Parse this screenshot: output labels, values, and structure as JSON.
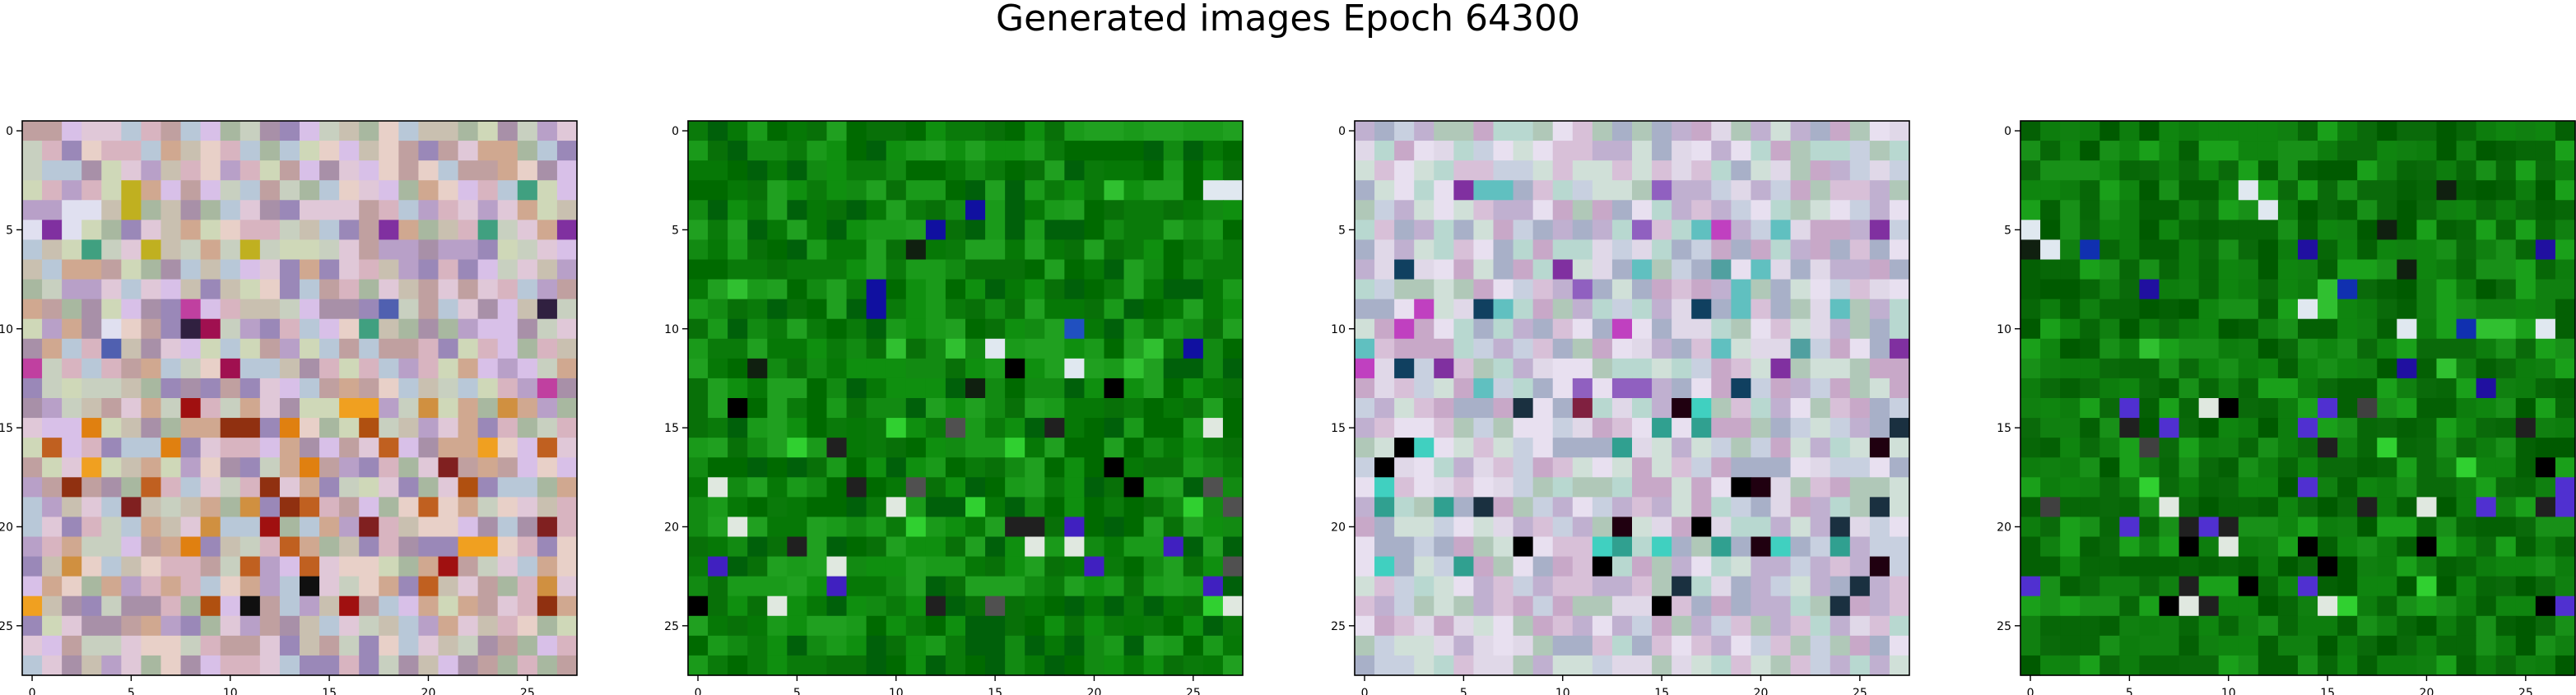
{
  "figure": {
    "title": "Generated images Epoch 64300"
  },
  "chart_data": [
    {
      "type": "heatmap",
      "title": "",
      "xlabel": "",
      "ylabel": "",
      "grid_size": [
        28,
        28
      ],
      "xlim": [
        -0.5,
        27.5
      ],
      "ylim": [
        27.5,
        -0.5
      ],
      "xticks": [
        0,
        5,
        10,
        15,
        20,
        25
      ],
      "yticks": [
        0,
        5,
        10,
        15,
        20,
        25
      ],
      "grid": false,
      "palette": [
        "#d8b4c0",
        "#c9c0b0",
        "#b8a0c8",
        "#e0c8d8",
        "#a8b8a0",
        "#d0a890",
        "#c8d0c0",
        "#9a88b8",
        "#e8d0c8",
        "#b8c8d8",
        "#c0a0a0",
        "#d8c0e8",
        "#a890a8",
        "#cfd8b8"
      ],
      "accents_top": [
        "#8030a0",
        "#c040a0",
        "#5060b0",
        "#e0e0f0",
        "#302040",
        "#a01050",
        "#40a080",
        "#c0b020"
      ],
      "accents_bottom": [
        "#c06020",
        "#e08010",
        "#a01010",
        "#802020",
        "#d09040",
        "#b05010",
        "#f0a020",
        "#903010",
        "#101010"
      ],
      "description": "multicolor pastel noise, warm orange/red lower half"
    },
    {
      "type": "heatmap",
      "title": "",
      "xlabel": "",
      "ylabel": "",
      "grid_size": [
        28,
        28
      ],
      "xlim": [
        -0.5,
        27.5
      ],
      "ylim": [
        27.5,
        -0.5
      ],
      "xticks": [
        0,
        5,
        10,
        15,
        20,
        25
      ],
      "yticks": [
        0,
        5,
        10,
        15,
        20,
        25
      ],
      "grid": false,
      "palette": [
        "#0a7a0a",
        "#128a12",
        "#006a00",
        "#1a9a1a",
        "#087008",
        "#0f8f0f",
        "#00600a",
        "#20a020",
        "#067806"
      ],
      "accents_top": [
        "#000000",
        "#102010",
        "#2050c0",
        "#1010a0",
        "#e0e8f0",
        "#30c030"
      ],
      "accents_bottom": [
        "#000000",
        "#202020",
        "#4020c0",
        "#e0e8e0",
        "#30d030",
        "#505050"
      ],
      "description": "green noise with dark and blue speckles"
    },
    {
      "type": "heatmap",
      "title": "",
      "xlabel": "",
      "ylabel": "",
      "grid_size": [
        28,
        28
      ],
      "xlim": [
        -0.5,
        27.5
      ],
      "ylim": [
        27.5,
        -0.5
      ],
      "xticks": [
        0,
        5,
        10,
        15,
        20,
        25
      ],
      "yticks": [
        0,
        5,
        10,
        15,
        20,
        25
      ],
      "grid": false,
      "palette": [
        "#c8d0e0",
        "#d8c0d8",
        "#b0c8b8",
        "#e0d8e8",
        "#c0b0d0",
        "#d0e0d8",
        "#a8b0c8",
        "#e8e0f0",
        "#c8a8c8",
        "#b8d8d0"
      ],
      "accents_top": [
        "#8030a0",
        "#104060",
        "#50a0a0",
        "#c040c0",
        "#9060c0",
        "#60c0c0"
      ],
      "accents_bottom": [
        "#000000",
        "#200010",
        "#30a090",
        "#40d0c0",
        "#1a3040",
        "#802040"
      ],
      "description": "pale pastel noise with few dark speckles"
    },
    {
      "type": "heatmap",
      "title": "",
      "xlabel": "",
      "ylabel": "",
      "grid_size": [
        28,
        28
      ],
      "xlim": [
        -0.5,
        27.5
      ],
      "ylim": [
        27.5,
        -0.5
      ],
      "xticks": [
        0,
        5,
        10,
        15,
        20,
        25
      ],
      "yticks": [
        0,
        5,
        10,
        15,
        20,
        25
      ],
      "grid": false,
      "palette": [
        "#0a6a0a",
        "#108010",
        "#005a00",
        "#189018",
        "#076707",
        "#0d7d0d",
        "#1aa01a",
        "#046004",
        "#0f850f"
      ],
      "accents_top": [
        "#000000",
        "#102010",
        "#1030b0",
        "#e0e8f0",
        "#2010a0",
        "#30c030"
      ],
      "accents_bottom": [
        "#000000",
        "#202020",
        "#5030d0",
        "#e0e8e0",
        "#30d030",
        "#404040"
      ],
      "description": "darker green noise with dark and blue speckles"
    }
  ]
}
